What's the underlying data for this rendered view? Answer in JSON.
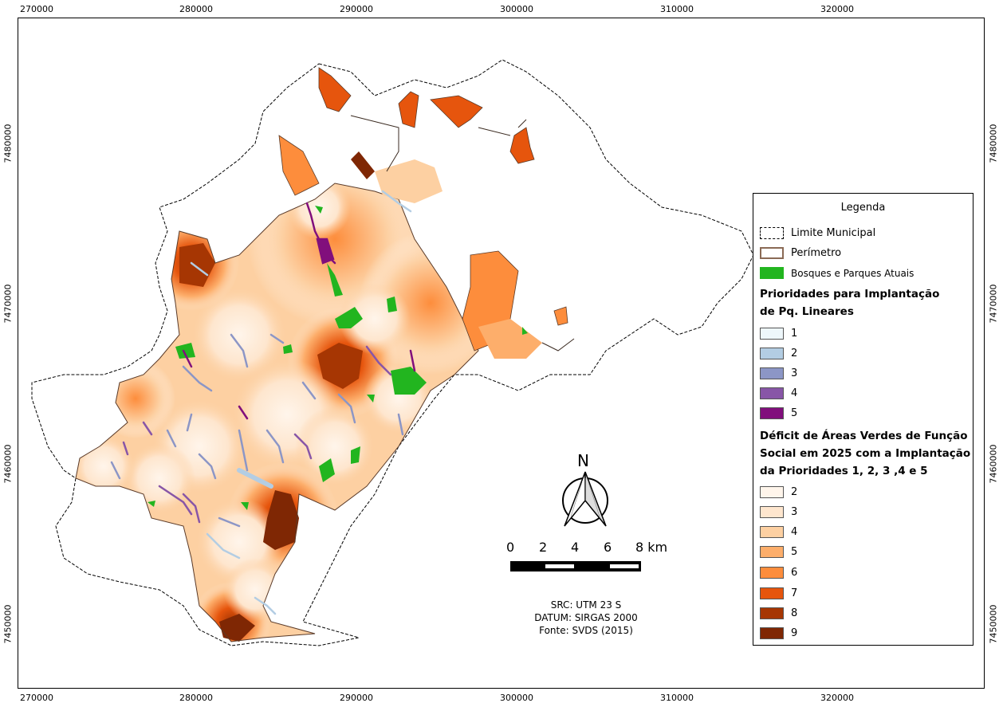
{
  "axes": {
    "x_ticks": [
      "270000",
      "280000",
      "290000",
      "300000",
      "310000",
      "320000"
    ],
    "y_ticks": [
      "7480000",
      "7470000",
      "7460000",
      "7450000"
    ]
  },
  "legend": {
    "title": "Legenda",
    "layers": [
      {
        "label": "Limite Municipal",
        "style": "dashed",
        "color": "#000000"
      },
      {
        "label": "Perímetro",
        "style": "outline",
        "color": "#8a6a55"
      },
      {
        "label": "Bosques e Parques Atuais",
        "style": "fill",
        "color": "#22b51f"
      }
    ],
    "priority_heading_1": "Prioridades para Implantação",
    "priority_heading_2": "de Pq. Lineares",
    "priorities": [
      {
        "label": "1",
        "color": "#eef7fb"
      },
      {
        "label": "2",
        "color": "#b3cde3"
      },
      {
        "label": "3",
        "color": "#8c96c6"
      },
      {
        "label": "4",
        "color": "#8856a7"
      },
      {
        "label": "5",
        "color": "#810f7c"
      }
    ],
    "deficit_heading_1": "Déficit de Áreas Verdes de Função",
    "deficit_heading_2": "Social em 2025 com a Implantação",
    "deficit_heading_3": "da Prioridades 1, 2, 3 ,4  e 5",
    "deficit_classes": [
      {
        "label": "2",
        "color": "#fff5eb"
      },
      {
        "label": "3",
        "color": "#fee6ce"
      },
      {
        "label": "4",
        "color": "#fdd0a2"
      },
      {
        "label": "5",
        "color": "#fdae6b"
      },
      {
        "label": "6",
        "color": "#fd8d3c"
      },
      {
        "label": "7",
        "color": "#e6550d"
      },
      {
        "label": "8",
        "color": "#a63603"
      },
      {
        "label": "9",
        "color": "#7f2704"
      }
    ]
  },
  "north_label": "N",
  "scale": {
    "labels": [
      "0",
      "2",
      "4",
      "6",
      "8 km"
    ]
  },
  "info": {
    "crs": "SRC: UTM 23 S",
    "datum": "DATUM: SIRGAS 2000",
    "source": "Fonte: SVDS (2015)"
  }
}
